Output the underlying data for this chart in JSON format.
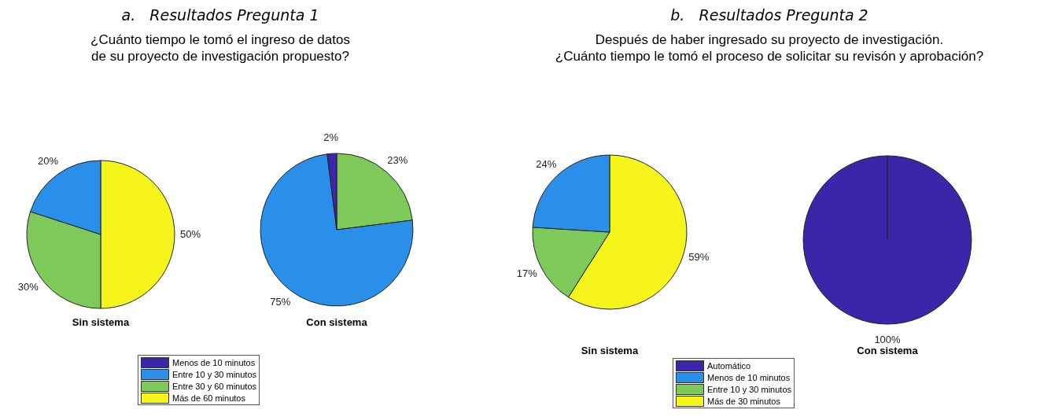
{
  "chart_data": [
    {
      "type": "pie",
      "title": "a.   Resultados Pregunta 1",
      "subtitle": "¿Cuánto tiempo le tomó el ingreso de datos\nde su proyecto de investigación propuesto?",
      "legend": "bottom",
      "categories": [
        "Menos de 10 minutos",
        "Entre 10 y 30 minutos",
        "Entre 30 y 60 minutos",
        "Más de 60 minutos"
      ],
      "colors": [
        "#3a26a8",
        "#2a8fe8",
        "#7dc95a",
        "#f5f51c"
      ],
      "series": [
        {
          "name": "Sin sistema",
          "values": [
            0,
            20,
            30,
            50
          ],
          "value_labels": [
            null,
            "20%",
            "30%",
            "50%"
          ]
        },
        {
          "name": "Con sistema",
          "values": [
            2,
            75,
            23,
            0
          ],
          "value_labels": [
            "2%",
            "75%",
            "23%",
            null
          ]
        }
      ]
    },
    {
      "type": "pie",
      "title": "b.   Resultados Pregunta 2",
      "subtitle": "Después de haber ingresado su proyecto de investigación.\n¿Cuánto tiempo le tomó el proceso de solicitar su revisón y aprobación?",
      "legend": "bottom",
      "categories": [
        "Automático",
        "Menos de 10 minutos",
        "Entre 10 y 30 minutos",
        "Más de 30 minutos"
      ],
      "colors": [
        "#3a26a8",
        "#2a8fe8",
        "#7dc95a",
        "#f5f51c"
      ],
      "series": [
        {
          "name": "Sin sistema",
          "values": [
            0,
            24,
            17,
            59
          ],
          "value_labels": [
            null,
            "24%",
            "17%",
            "59%"
          ]
        },
        {
          "name": "Con sistema",
          "values": [
            100,
            0,
            0,
            0
          ],
          "value_labels": [
            "100%",
            null,
            null,
            null
          ]
        }
      ]
    }
  ]
}
